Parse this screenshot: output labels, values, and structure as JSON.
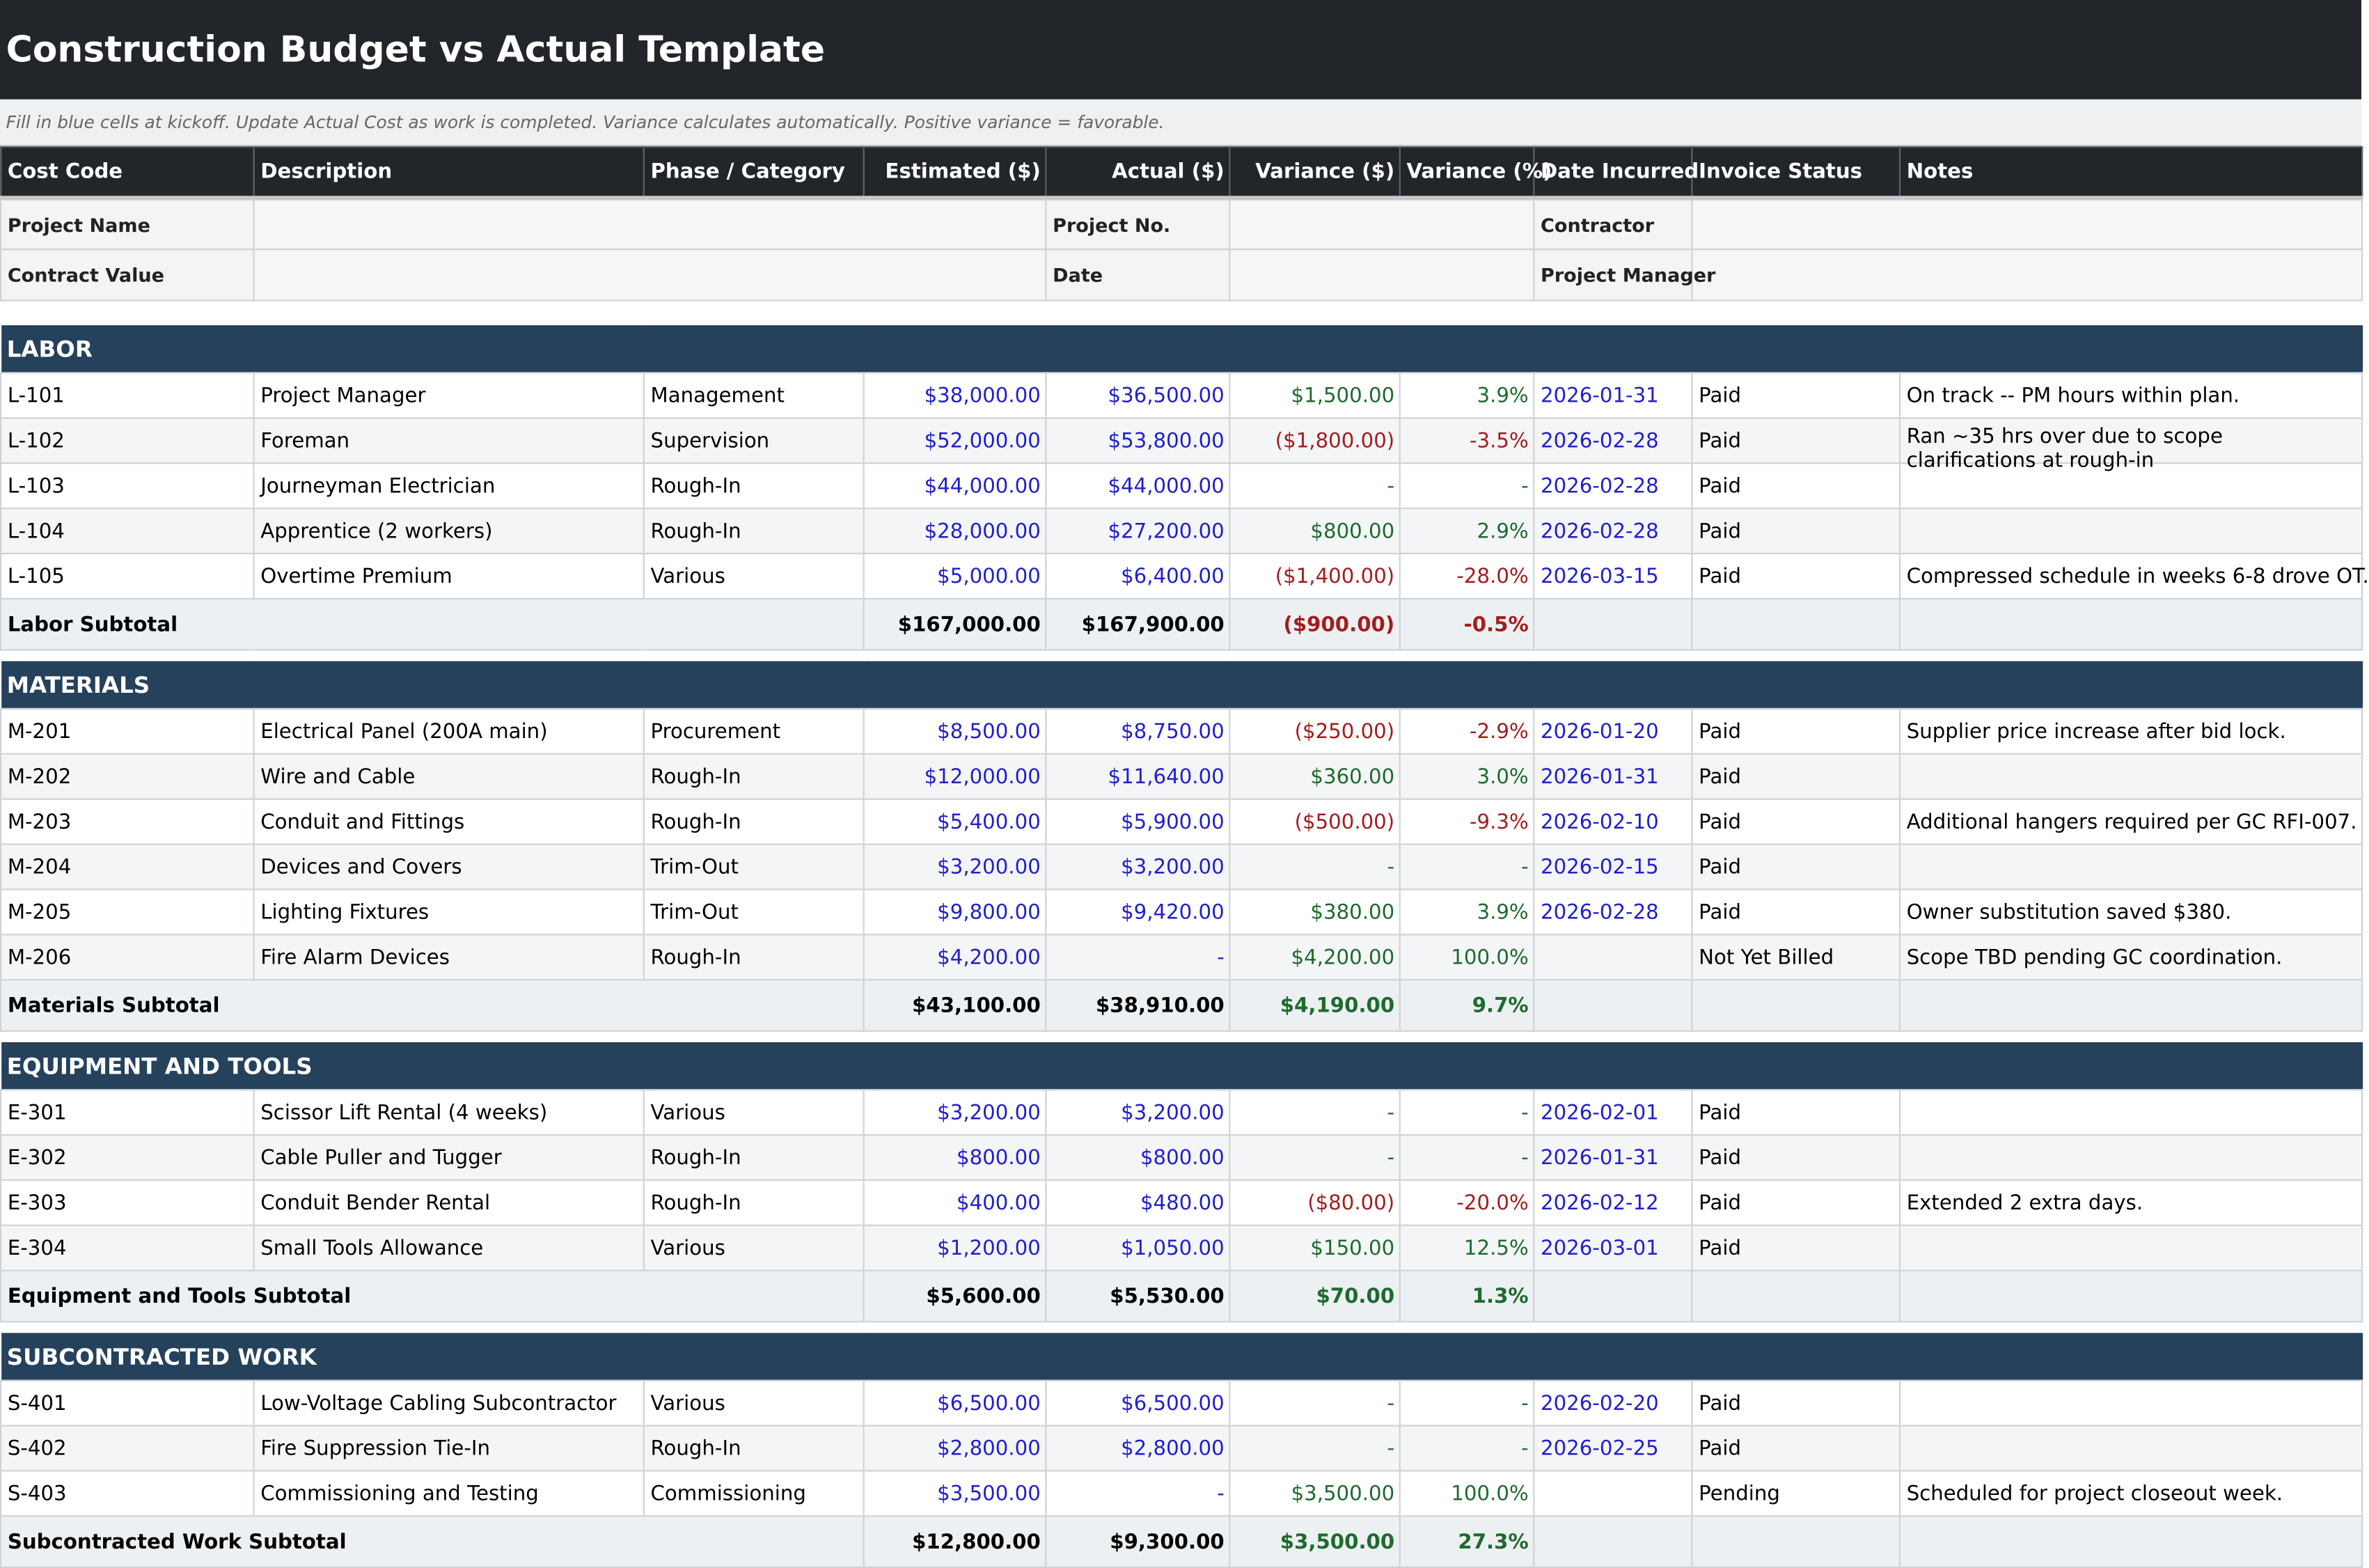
{
  "title": "Construction Budget vs Actual Template",
  "instruction": "Fill in blue cells at kickoff. Update Actual Cost as work is completed. Variance calculates automatically. Positive variance = favorable.",
  "info": {
    "project_name_label": "Project Name",
    "project_name_value": "",
    "project_no_label": "Project No.",
    "project_no_value": "",
    "contractor_label": "Contractor",
    "contractor_value": "",
    "contract_value_label": "Contract Value",
    "contract_value_value": "",
    "date_label": "Date",
    "date_value": "",
    "project_manager_label": "Project Manager",
    "project_manager_value": ""
  },
  "columns": [
    "Cost Code",
    "Description",
    "Phase / Category",
    "Estimated ($)",
    "Actual ($)",
    "Variance ($)",
    "Variance (%)",
    "Date Incurred",
    "Invoice Status",
    "Notes"
  ],
  "colors": {
    "title_bg": "#22262b",
    "section_bg": "#25415c",
    "input_blue": "#1f1fcc",
    "favorable_green": "#1e6b2e",
    "unfavorable_red": "#a31d1d"
  },
  "sections": [
    {
      "name": "LABOR",
      "rows": [
        {
          "code": "L-101",
          "desc": "Project Manager",
          "phase": "Management",
          "est": "$38,000.00",
          "act": "$36,500.00",
          "var": "$1,500.00",
          "pct": "3.9%",
          "date": "2026-01-31",
          "status": "Paid",
          "notes": "On track -- PM hours within plan.",
          "tone": "green"
        },
        {
          "code": "L-102",
          "desc": "Foreman",
          "phase": "Supervision",
          "est": "$52,000.00",
          "act": "$53,800.00",
          "var": "($1,800.00)",
          "pct": "-3.5%",
          "date": "2026-02-28",
          "status": "Paid",
          "notes": "Ran ~35 hrs over due to scope clarifications at rough-in",
          "tone": "red"
        },
        {
          "code": "L-103",
          "desc": "Journeyman Electrician",
          "phase": "Rough-In",
          "est": "$44,000.00",
          "act": "$44,000.00",
          "var": "-",
          "pct": "-",
          "date": "2026-02-28",
          "status": "Paid",
          "notes": "",
          "tone": "green"
        },
        {
          "code": "L-104",
          "desc": "Apprentice (2 workers)",
          "phase": "Rough-In",
          "est": "$28,000.00",
          "act": "$27,200.00",
          "var": "$800.00",
          "pct": "2.9%",
          "date": "2026-02-28",
          "status": "Paid",
          "notes": "",
          "tone": "green"
        },
        {
          "code": "L-105",
          "desc": "Overtime Premium",
          "phase": "Various",
          "est": "$5,000.00",
          "act": "$6,400.00",
          "var": "($1,400.00)",
          "pct": "-28.0%",
          "date": "2026-03-15",
          "status": "Paid",
          "notes": "Compressed schedule in weeks 6-8 drove OT.",
          "tone": "red"
        }
      ],
      "subtotal": {
        "label": "Labor Subtotal",
        "est": "$167,000.00",
        "act": "$167,900.00",
        "var": "($900.00)",
        "pct": "-0.5%",
        "tone": "red"
      }
    },
    {
      "name": "MATERIALS",
      "rows": [
        {
          "code": "M-201",
          "desc": "Electrical Panel (200A main)",
          "phase": "Procurement",
          "est": "$8,500.00",
          "act": "$8,750.00",
          "var": "($250.00)",
          "pct": "-2.9%",
          "date": "2026-01-20",
          "status": "Paid",
          "notes": "Supplier price increase after bid lock.",
          "tone": "red"
        },
        {
          "code": "M-202",
          "desc": "Wire and Cable",
          "phase": "Rough-In",
          "est": "$12,000.00",
          "act": "$11,640.00",
          "var": "$360.00",
          "pct": "3.0%",
          "date": "2026-01-31",
          "status": "Paid",
          "notes": "",
          "tone": "green"
        },
        {
          "code": "M-203",
          "desc": "Conduit and Fittings",
          "phase": "Rough-In",
          "est": "$5,400.00",
          "act": "$5,900.00",
          "var": "($500.00)",
          "pct": "-9.3%",
          "date": "2026-02-10",
          "status": "Paid",
          "notes": "Additional hangers required per GC RFI-007.",
          "tone": "red"
        },
        {
          "code": "M-204",
          "desc": "Devices and Covers",
          "phase": "Trim-Out",
          "est": "$3,200.00",
          "act": "$3,200.00",
          "var": "-",
          "pct": "-",
          "date": "2026-02-15",
          "status": "Paid",
          "notes": "",
          "tone": "green"
        },
        {
          "code": "M-205",
          "desc": "Lighting Fixtures",
          "phase": "Trim-Out",
          "est": "$9,800.00",
          "act": "$9,420.00",
          "var": "$380.00",
          "pct": "3.9%",
          "date": "2026-02-28",
          "status": "Paid",
          "notes": "Owner substitution saved $380.",
          "tone": "green"
        },
        {
          "code": "M-206",
          "desc": "Fire Alarm Devices",
          "phase": "Rough-In",
          "est": "$4,200.00",
          "act": "-",
          "var": "$4,200.00",
          "pct": "100.0%",
          "date": "",
          "status": "Not Yet Billed",
          "notes": "Scope TBD pending GC coordination.",
          "tone": "green"
        }
      ],
      "subtotal": {
        "label": "Materials Subtotal",
        "est": "$43,100.00",
        "act": "$38,910.00",
        "var": "$4,190.00",
        "pct": "9.7%",
        "tone": "green"
      }
    },
    {
      "name": "EQUIPMENT AND TOOLS",
      "rows": [
        {
          "code": "E-301",
          "desc": "Scissor Lift Rental (4 weeks)",
          "phase": "Various",
          "est": "$3,200.00",
          "act": "$3,200.00",
          "var": "-",
          "pct": "-",
          "date": "2026-02-01",
          "status": "Paid",
          "notes": "",
          "tone": "green"
        },
        {
          "code": "E-302",
          "desc": "Cable Puller and Tugger",
          "phase": "Rough-In",
          "est": "$800.00",
          "act": "$800.00",
          "var": "-",
          "pct": "-",
          "date": "2026-01-31",
          "status": "Paid",
          "notes": "",
          "tone": "green"
        },
        {
          "code": "E-303",
          "desc": "Conduit Bender Rental",
          "phase": "Rough-In",
          "est": "$400.00",
          "act": "$480.00",
          "var": "($80.00)",
          "pct": "-20.0%",
          "date": "2026-02-12",
          "status": "Paid",
          "notes": "Extended 2 extra days.",
          "tone": "red"
        },
        {
          "code": "E-304",
          "desc": "Small Tools Allowance",
          "phase": "Various",
          "est": "$1,200.00",
          "act": "$1,050.00",
          "var": "$150.00",
          "pct": "12.5%",
          "date": "2026-03-01",
          "status": "Paid",
          "notes": "",
          "tone": "green"
        }
      ],
      "subtotal": {
        "label": "Equipment and Tools Subtotal",
        "est": "$5,600.00",
        "act": "$5,530.00",
        "var": "$70.00",
        "pct": "1.3%",
        "tone": "green"
      }
    },
    {
      "name": "SUBCONTRACTED WORK",
      "rows": [
        {
          "code": "S-401",
          "desc": "Low-Voltage Cabling Subcontractor",
          "phase": "Various",
          "est": "$6,500.00",
          "act": "$6,500.00",
          "var": "-",
          "pct": "-",
          "date": "2026-02-20",
          "status": "Paid",
          "notes": "",
          "tone": "green"
        },
        {
          "code": "S-402",
          "desc": "Fire Suppression Tie-In",
          "phase": "Rough-In",
          "est": "$2,800.00",
          "act": "$2,800.00",
          "var": "-",
          "pct": "-",
          "date": "2026-02-25",
          "status": "Paid",
          "notes": "",
          "tone": "green"
        },
        {
          "code": "S-403",
          "desc": "Commissioning and Testing",
          "phase": "Commissioning",
          "est": "$3,500.00",
          "act": "-",
          "var": "$3,500.00",
          "pct": "100.0%",
          "date": "",
          "status": "Pending",
          "notes": "Scheduled for project closeout week.",
          "tone": "green"
        }
      ],
      "subtotal": {
        "label": "Subcontracted Work Subtotal",
        "est": "$12,800.00",
        "act": "$9,300.00",
        "var": "$3,500.00",
        "pct": "27.3%",
        "tone": "green"
      }
    }
  ]
}
